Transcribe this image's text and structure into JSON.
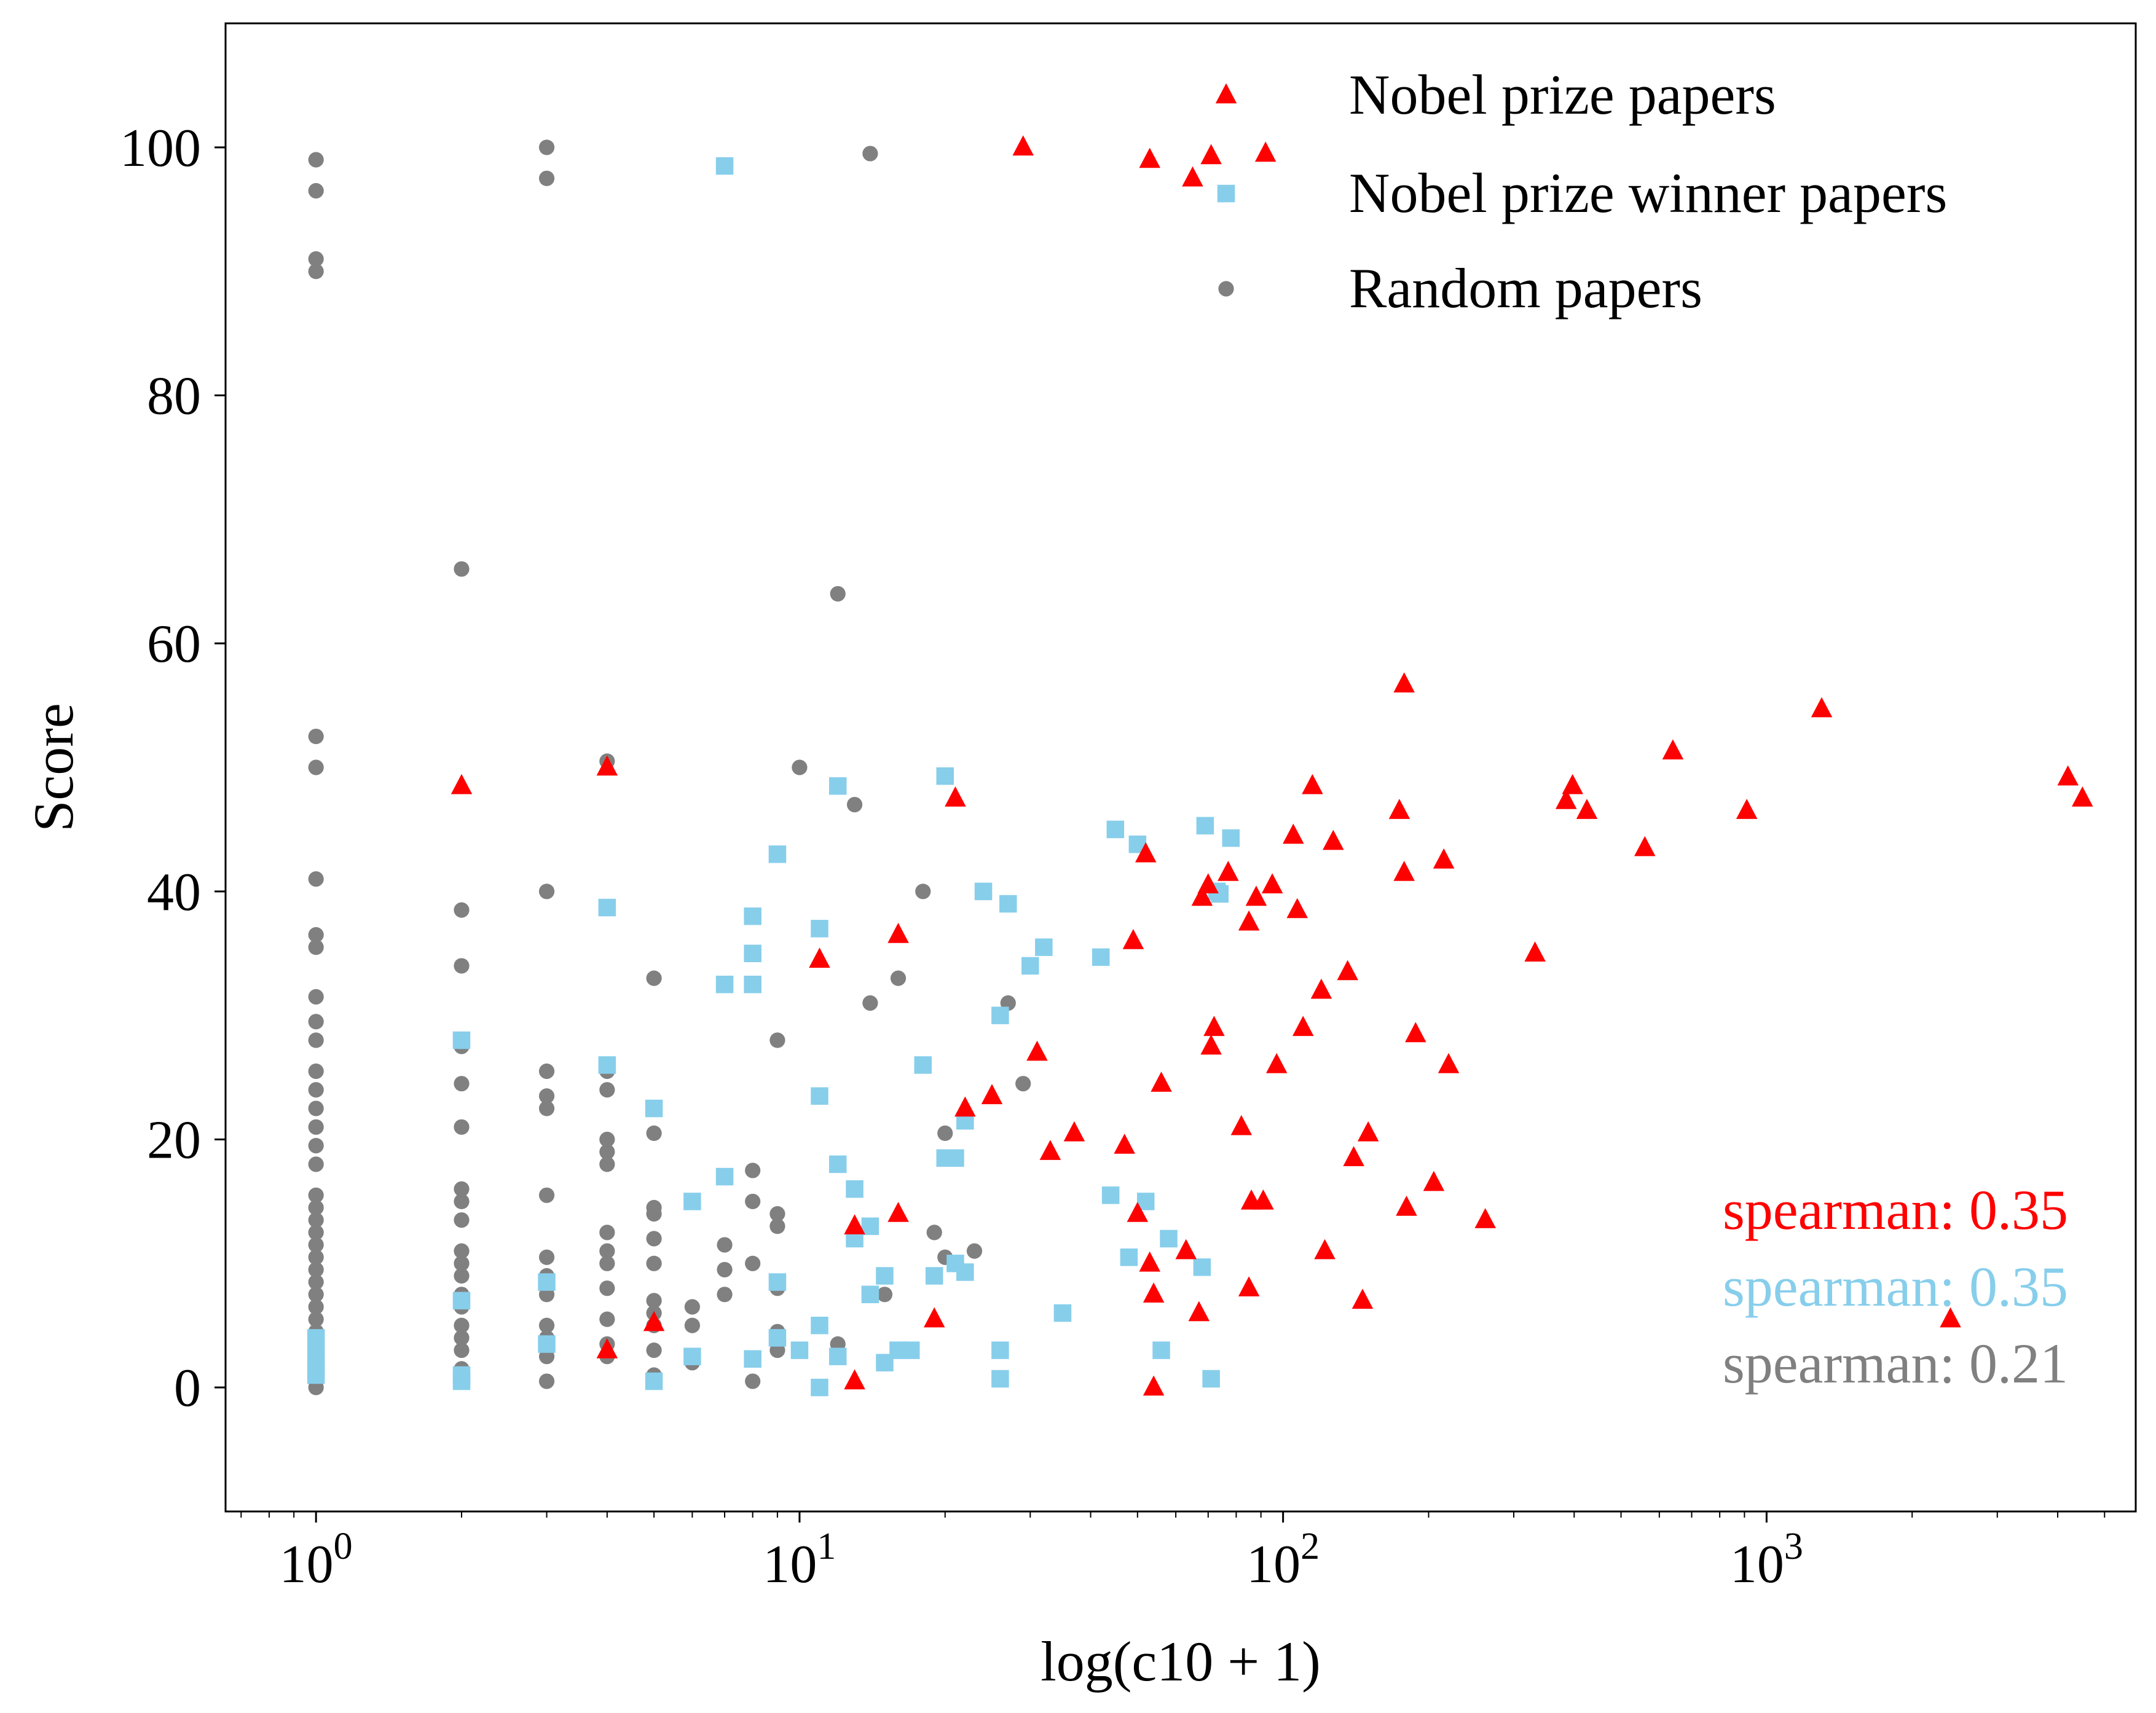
{
  "chart_data": {
    "type": "scatter",
    "title": "",
    "xlabel": "log(c10 + 1)",
    "ylabel": "Score",
    "xscale": "log",
    "xlim": [
      0.65,
      5800
    ],
    "ylim": [
      -10,
      110
    ],
    "x_tick_labels": [
      {
        "base": "10",
        "exp": "0",
        "value": 1
      },
      {
        "base": "10",
        "exp": "1",
        "value": 10
      },
      {
        "base": "10",
        "exp": "2",
        "value": 100
      },
      {
        "base": "10",
        "exp": "3",
        "value": 1000
      }
    ],
    "y_tick_labels": [
      {
        "label": "0",
        "value": 0
      },
      {
        "label": "20",
        "value": 20
      },
      {
        "label": "40",
        "value": 40
      },
      {
        "label": "60",
        "value": 60
      },
      {
        "label": "80",
        "value": 80
      },
      {
        "label": "100",
        "value": 100
      }
    ],
    "grid": false,
    "legend": {
      "position": "top-right"
    },
    "series": [
      {
        "name": "Nobel prize papers",
        "color": "#ff0000",
        "marker": "triangle",
        "points": [
          [
            29,
            100
          ],
          [
            53,
            99
          ],
          [
            65,
            97.5
          ],
          [
            71,
            99.3
          ],
          [
            92,
            99.5
          ],
          [
            2,
            48.5
          ],
          [
            4,
            50
          ],
          [
            21,
            47.5
          ],
          [
            4,
            3
          ],
          [
            5,
            5.2
          ],
          [
            11,
            34.5
          ],
          [
            13,
            13
          ],
          [
            13,
            0.5
          ],
          [
            16,
            36.5
          ],
          [
            16,
            14
          ],
          [
            19,
            5.5
          ],
          [
            22,
            22.5
          ],
          [
            25,
            23.5
          ],
          [
            31,
            27
          ],
          [
            33,
            19
          ],
          [
            37,
            20.5
          ],
          [
            47,
            19.5
          ],
          [
            49,
            36
          ],
          [
            50,
            14
          ],
          [
            52,
            43
          ],
          [
            53,
            10
          ],
          [
            54,
            7.5
          ],
          [
            54,
            0
          ],
          [
            56,
            24.5
          ],
          [
            63,
            11
          ],
          [
            67,
            6
          ],
          [
            68,
            39.5
          ],
          [
            70,
            40.5
          ],
          [
            71,
            27.5
          ],
          [
            72,
            29
          ],
          [
            77,
            41.5
          ],
          [
            82,
            21
          ],
          [
            85,
            37.5
          ],
          [
            85,
            8
          ],
          [
            86,
            15
          ],
          [
            88,
            39.5
          ],
          [
            91,
            15
          ],
          [
            95,
            40.5
          ],
          [
            97,
            26
          ],
          [
            105,
            44.5
          ],
          [
            107,
            38.5
          ],
          [
            110,
            29
          ],
          [
            115,
            48.5
          ],
          [
            120,
            32
          ],
          [
            122,
            11
          ],
          [
            127,
            44
          ],
          [
            136,
            33.5
          ],
          [
            140,
            18.5
          ],
          [
            146,
            7
          ],
          [
            150,
            20.5
          ],
          [
            174,
            46.5
          ],
          [
            178,
            56.7
          ],
          [
            178,
            41.5
          ],
          [
            180,
            14.5
          ],
          [
            188,
            28.5
          ],
          [
            205,
            16.5
          ],
          [
            215,
            42.5
          ],
          [
            220,
            26
          ],
          [
            262,
            13.5
          ],
          [
            332,
            35
          ],
          [
            385,
            47.3
          ],
          [
            397,
            48.5
          ],
          [
            425,
            46.5
          ],
          [
            560,
            43.5
          ],
          [
            640,
            51.3
          ],
          [
            910,
            46.5
          ],
          [
            1300,
            54.7
          ],
          [
            2400,
            5.5
          ],
          [
            4200,
            49.2
          ],
          [
            4500,
            47.5
          ]
        ]
      },
      {
        "name": "Nobel prize winner papers",
        "color": "#87ceeb",
        "marker": "square",
        "points": [
          [
            7,
            98.5
          ],
          [
            1,
            4
          ],
          [
            1,
            3
          ],
          [
            1,
            2
          ],
          [
            1,
            1.5
          ],
          [
            1,
            1
          ],
          [
            2,
            28
          ],
          [
            2,
            7
          ],
          [
            2,
            1
          ],
          [
            2,
            0.5
          ],
          [
            3,
            8.5
          ],
          [
            3,
            3.5
          ],
          [
            4,
            38.7
          ],
          [
            4,
            26
          ],
          [
            5,
            22.5
          ],
          [
            5,
            0.5
          ],
          [
            6,
            15
          ],
          [
            6,
            2.5
          ],
          [
            7,
            32.5
          ],
          [
            7,
            17
          ],
          [
            8,
            38
          ],
          [
            8,
            35
          ],
          [
            8,
            32.5
          ],
          [
            8,
            2.3
          ],
          [
            9,
            43
          ],
          [
            9,
            8.5
          ],
          [
            9,
            4
          ],
          [
            10,
            3
          ],
          [
            11,
            37
          ],
          [
            11,
            23.5
          ],
          [
            11,
            5
          ],
          [
            11,
            0
          ],
          [
            12,
            48.5
          ],
          [
            12,
            18
          ],
          [
            12,
            2.5
          ],
          [
            13,
            16
          ],
          [
            13,
            12
          ],
          [
            14,
            13
          ],
          [
            14,
            7.5
          ],
          [
            15,
            9
          ],
          [
            15,
            2
          ],
          [
            16,
            3
          ],
          [
            17,
            3
          ],
          [
            18,
            26
          ],
          [
            19,
            9
          ],
          [
            20,
            49.3
          ],
          [
            20,
            18.5
          ],
          [
            21,
            18.5
          ],
          [
            21,
            10
          ],
          [
            22,
            21.5
          ],
          [
            22,
            9.3
          ],
          [
            24,
            40
          ],
          [
            26,
            30
          ],
          [
            26,
            3
          ],
          [
            26,
            0.7
          ],
          [
            27,
            39
          ],
          [
            30,
            34
          ],
          [
            32,
            35.5
          ],
          [
            35,
            6
          ],
          [
            42,
            34.7
          ],
          [
            44,
            15.5
          ],
          [
            45,
            45
          ],
          [
            48,
            10.5
          ],
          [
            50,
            43.8
          ],
          [
            52,
            15
          ],
          [
            56,
            3
          ],
          [
            58,
            12
          ],
          [
            68,
            9.7
          ],
          [
            69,
            45.3
          ],
          [
            71,
            0.7
          ],
          [
            73,
            40
          ],
          [
            74,
            39.8
          ],
          [
            78,
            44.3
          ]
        ]
      },
      {
        "name": "Random papers",
        "color": "#808080",
        "marker": "circle",
        "points": [
          [
            1,
            99
          ],
          [
            1,
            96.5
          ],
          [
            1,
            91
          ],
          [
            1,
            90
          ],
          [
            1,
            52.5
          ],
          [
            1,
            50
          ],
          [
            1,
            41
          ],
          [
            1,
            36.5
          ],
          [
            1,
            35.5
          ],
          [
            1,
            31.5
          ],
          [
            1,
            29.5
          ],
          [
            1,
            28
          ],
          [
            1,
            25.5
          ],
          [
            1,
            24
          ],
          [
            1,
            22.5
          ],
          [
            1,
            21
          ],
          [
            1,
            19.5
          ],
          [
            1,
            18
          ],
          [
            1,
            15.5
          ],
          [
            1,
            14.5
          ],
          [
            1,
            13.5
          ],
          [
            1,
            12.5
          ],
          [
            1,
            11.5
          ],
          [
            1,
            10.5
          ],
          [
            1,
            9.5
          ],
          [
            1,
            8.5
          ],
          [
            1,
            7.5
          ],
          [
            1,
            6.5
          ],
          [
            1,
            5.5
          ],
          [
            1,
            4.5
          ],
          [
            1,
            3.5
          ],
          [
            1,
            2.5
          ],
          [
            1,
            1.5
          ],
          [
            1,
            1
          ],
          [
            1,
            0.5
          ],
          [
            1,
            0
          ],
          [
            2,
            66
          ],
          [
            2,
            38.5
          ],
          [
            2,
            34
          ],
          [
            2,
            27.5
          ],
          [
            2,
            24.5
          ],
          [
            2,
            21
          ],
          [
            2,
            16
          ],
          [
            2,
            15
          ],
          [
            2,
            13.5
          ],
          [
            2,
            11
          ],
          [
            2,
            10
          ],
          [
            2,
            9
          ],
          [
            2,
            7.5
          ],
          [
            2,
            6.5
          ],
          [
            2,
            5
          ],
          [
            2,
            4
          ],
          [
            2,
            3
          ],
          [
            2,
            1.5
          ],
          [
            3,
            100
          ],
          [
            3,
            97.5
          ],
          [
            3,
            40
          ],
          [
            3,
            25.5
          ],
          [
            3,
            23.5
          ],
          [
            3,
            22.5
          ],
          [
            3,
            15.5
          ],
          [
            3,
            10.5
          ],
          [
            3,
            9
          ],
          [
            3,
            7.5
          ],
          [
            3,
            5
          ],
          [
            3,
            4
          ],
          [
            3,
            2.5
          ],
          [
            3,
            0.5
          ],
          [
            4,
            50.5
          ],
          [
            4,
            25.5
          ],
          [
            4,
            24
          ],
          [
            4,
            20
          ],
          [
            4,
            19
          ],
          [
            4,
            18
          ],
          [
            4,
            12.5
          ],
          [
            4,
            11
          ],
          [
            4,
            10
          ],
          [
            4,
            8
          ],
          [
            4,
            5.5
          ],
          [
            4,
            3.5
          ],
          [
            4,
            2.5
          ],
          [
            5,
            33
          ],
          [
            5,
            20.5
          ],
          [
            5,
            14.5
          ],
          [
            5,
            14
          ],
          [
            5,
            12
          ],
          [
            5,
            10
          ],
          [
            5,
            7
          ],
          [
            5,
            6
          ],
          [
            5,
            5
          ],
          [
            5,
            3
          ],
          [
            5,
            1
          ],
          [
            6,
            6.5
          ],
          [
            6,
            5
          ],
          [
            6,
            2
          ],
          [
            7,
            17
          ],
          [
            7,
            11.5
          ],
          [
            7,
            9.5
          ],
          [
            7,
            7.5
          ],
          [
            8,
            17.5
          ],
          [
            8,
            15
          ],
          [
            8,
            10
          ],
          [
            8,
            0.5
          ],
          [
            9,
            28
          ],
          [
            9,
            14
          ],
          [
            9,
            13
          ],
          [
            9,
            8
          ],
          [
            9,
            4.5
          ],
          [
            9,
            3
          ],
          [
            10,
            50
          ],
          [
            12,
            64
          ],
          [
            12,
            3.5
          ],
          [
            13,
            47
          ],
          [
            14,
            99.5
          ],
          [
            14,
            31
          ],
          [
            15,
            7.5
          ],
          [
            16,
            33
          ],
          [
            18,
            40
          ],
          [
            19,
            12.5
          ],
          [
            20,
            20.5
          ],
          [
            20,
            10.5
          ],
          [
            23,
            11
          ],
          [
            27,
            31
          ],
          [
            29,
            24.5
          ]
        ]
      }
    ],
    "annotations": [
      {
        "text": "spearman: 0.35",
        "color": "#ff0000"
      },
      {
        "text": "spearman: 0.35",
        "color": "#87ceeb"
      },
      {
        "text": "spearman: 0.21",
        "color": "#808080"
      }
    ]
  }
}
